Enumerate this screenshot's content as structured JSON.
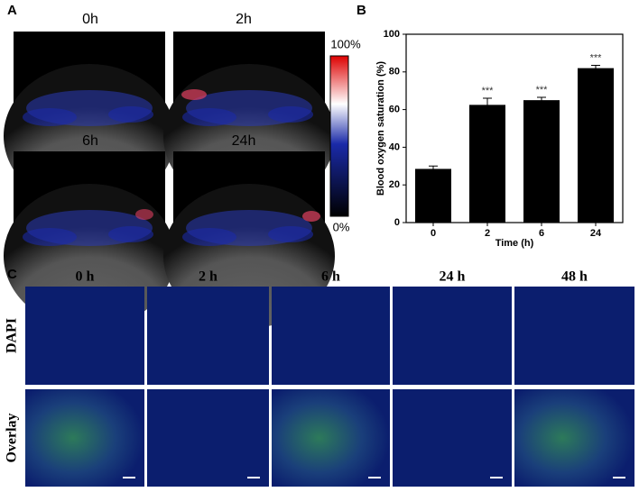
{
  "panel_labels": [
    "A",
    "B",
    "C"
  ],
  "panel_a": {
    "time_labels": [
      "0h",
      "2h",
      "6h",
      "24h"
    ],
    "colorbar_max": "100%",
    "colorbar_min": "0%"
  },
  "chart_data": {
    "type": "bar",
    "xlabel": "Time (h)",
    "ylabel": "Blood oxygen saturation (%)",
    "categories": [
      "0",
      "2",
      "6",
      "24"
    ],
    "values": [
      28.5,
      62.5,
      65,
      82
    ],
    "errors": [
      1.5,
      3.5,
      1.5,
      1.5
    ],
    "significance": [
      null,
      "***",
      "***",
      "***"
    ],
    "color": "#000000",
    "ylim": [
      0,
      100
    ],
    "yticks": [
      0,
      20,
      40,
      60,
      80,
      100
    ]
  },
  "panel_c": {
    "column_labels": [
      "0 h",
      "2 h",
      "6 h",
      "24 h",
      "48 h"
    ],
    "row_labels": [
      "DAPI",
      "Overlay"
    ]
  }
}
